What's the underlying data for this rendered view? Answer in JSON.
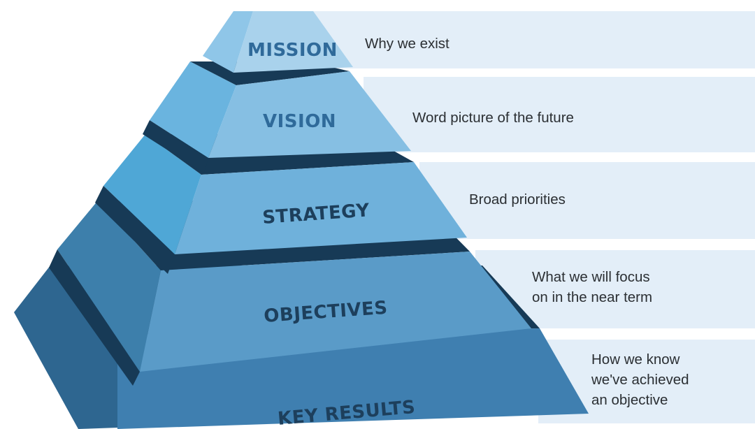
{
  "pyramid": {
    "tiers": [
      {
        "label": "MISSION",
        "description_lines": [
          "Why we exist"
        ]
      },
      {
        "label": "VISION",
        "description_lines": [
          "Word picture of the future"
        ]
      },
      {
        "label": "STRATEGY",
        "description_lines": [
          "Broad priorities"
        ]
      },
      {
        "label": "OBJECTIVES",
        "description_lines": [
          "What we will focus",
          "on in the near term"
        ]
      },
      {
        "label": "KEY RESULTS",
        "description_lines": [
          "How we know",
          "we've achieved",
          "an objective"
        ]
      }
    ]
  },
  "colors": {
    "background": "#ffffff",
    "band": "#e3eef8",
    "gap_dark": "#173a56",
    "mission_face": "#9cc9e6",
    "vision_face": "#86bfe3",
    "strategy_face": "#6fb1db",
    "objectives_face": "#5a9bc8",
    "key_results_face": "#3f7fb0",
    "label_text_light": "#2f6a9a",
    "label_text_dark": "#1d3f5c",
    "description_text": "#2b2f33"
  }
}
